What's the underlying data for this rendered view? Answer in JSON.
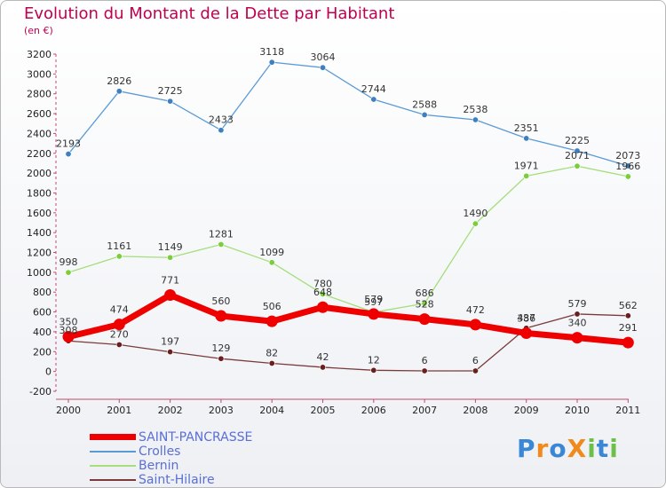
{
  "title": "Evolution du Montant de la Dette par Habitant",
  "subtitle": "(en €)",
  "logo": {
    "text": "ProXiti",
    "letters": [
      "P",
      "r",
      "o",
      "X",
      "i",
      "t",
      "i"
    ],
    "colors": [
      "#3a87d6",
      "#f08a1c",
      "#3a87d6",
      "#f08a1c",
      "#6cc04a",
      "#3a87d6",
      "#6cc04a"
    ]
  },
  "chart_data": {
    "type": "line",
    "x": [
      "2000",
      "2001",
      "2002",
      "2003",
      "2004",
      "2005",
      "2006",
      "2007",
      "2008",
      "2009",
      "2010",
      "2011"
    ],
    "ylim": [
      -200,
      3200
    ],
    "yticks": [
      "-200",
      "0",
      "200",
      "400",
      "600",
      "800",
      "1000",
      "1200",
      "1400",
      "1600",
      "1800",
      "2000",
      "2200",
      "2400",
      "2600",
      "2800",
      "3000",
      "3200"
    ],
    "grid": false,
    "legend_position": "bottom",
    "series": [
      {
        "name": "SAINT-PANCRASSE",
        "color": "#ee0000",
        "marker": "#ee0000",
        "width": 7,
        "values": [
          350,
          474,
          771,
          560,
          506,
          648,
          579,
          528,
          472,
          386,
          340,
          291
        ],
        "labels": [
          "350",
          "474",
          "771",
          "560",
          "506",
          "648",
          "579",
          "528",
          "472",
          "386",
          "340",
          "291"
        ]
      },
      {
        "name": "Crolles",
        "color": "#5b9bd5",
        "marker": "#3d7fc0",
        "width": 1.3,
        "values": [
          2193,
          2826,
          2725,
          2433,
          3118,
          3064,
          2744,
          2588,
          2538,
          2351,
          2225,
          2073
        ],
        "labels": [
          "2193",
          "2826",
          "2725",
          "2433",
          "3118",
          "3064",
          "2744",
          "2588",
          "2538",
          "2351",
          "2225",
          "2073"
        ]
      },
      {
        "name": "Bernin",
        "color": "#a6de7d",
        "marker": "#7ccd3c",
        "width": 1.3,
        "values": [
          998,
          1161,
          1149,
          1281,
          1099,
          780,
          597,
          686,
          1490,
          1971,
          2071,
          1966
        ],
        "labels": [
          "998",
          "1161",
          "1149",
          "1281",
          "1099",
          "780",
          "597",
          "686",
          "1490",
          "1971",
          "2071",
          "1966"
        ]
      },
      {
        "name": "Saint-Hilaire",
        "color": "#7a3b3b",
        "marker": "#6a1f1f",
        "width": 1.3,
        "values": [
          308,
          270,
          197,
          129,
          82,
          42,
          12,
          6,
          6,
          437,
          579,
          562
        ],
        "labels": [
          "308",
          "270",
          "197",
          "129",
          "82",
          "42",
          "12",
          "6",
          "6",
          "437",
          "579",
          "562"
        ]
      }
    ]
  }
}
